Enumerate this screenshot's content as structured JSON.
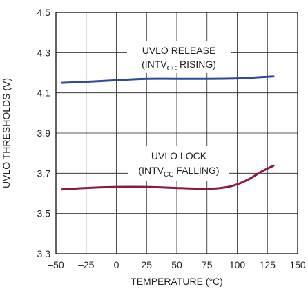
{
  "chart_data": {
    "type": "line",
    "title": "",
    "xlabel": "TEMPERATURE (°C)",
    "ylabel": "UVLO THRESHOLDS (V)",
    "xlim": [
      -50,
      150
    ],
    "ylim": [
      3.3,
      4.5
    ],
    "x_ticks": [
      -50,
      -25,
      0,
      25,
      50,
      75,
      100,
      125,
      150
    ],
    "y_ticks": [
      3.3,
      3.5,
      3.7,
      3.9,
      4.1,
      4.3,
      4.5
    ],
    "x_tick_labels": [
      "–50",
      "–25",
      "0",
      "25",
      "50",
      "75",
      "100",
      "125",
      "150"
    ],
    "y_tick_labels": [
      "3.3",
      "3.5",
      "3.7",
      "3.9",
      "4.1",
      "4.3",
      "4.5"
    ],
    "grid": true,
    "series": [
      {
        "name": "UVLO RELEASE (INTVCC RISING)",
        "color": "#2e4b9b",
        "x": [
          -45,
          -25,
          0,
          25,
          50,
          75,
          100,
          115,
          130
        ],
        "y": [
          4.15,
          4.155,
          4.163,
          4.17,
          4.17,
          4.17,
          4.172,
          4.177,
          4.182
        ]
      },
      {
        "name": "UVLO LOCK (INTVCC FALLING)",
        "color": "#8b1a3f",
        "x": [
          -45,
          -25,
          0,
          25,
          50,
          75,
          90,
          100,
          110,
          120,
          130
        ],
        "y": [
          3.62,
          3.627,
          3.632,
          3.632,
          3.627,
          3.623,
          3.63,
          3.645,
          3.672,
          3.708,
          3.738
        ]
      }
    ],
    "annotations": {
      "release": {
        "line1": "UVLO RELEASE",
        "line2_prefix": "(INTV",
        "line2_sub": "CC",
        "line2_suffix": " RISING)"
      },
      "lock": {
        "line1": "UVLO LOCK",
        "line2_prefix": "(INTV",
        "line2_sub": "CC",
        "line2_suffix": " FALLING)"
      }
    }
  }
}
